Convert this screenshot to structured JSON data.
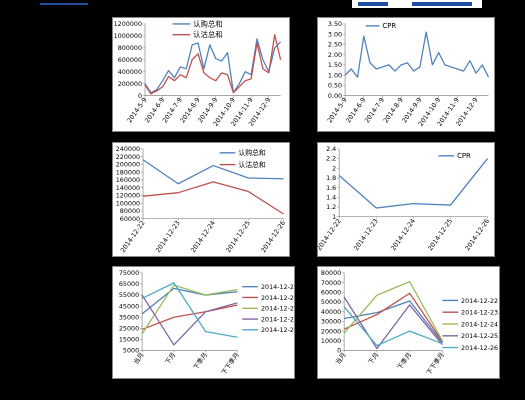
{
  "chart_data": [
    {
      "type": "line",
      "id": "c1",
      "x": [
        "2014-5-9",
        "2014-5-19",
        "2014-5-29",
        "2014-6-9",
        "2014-6-19",
        "2014-6-29",
        "2014-7-9",
        "2014-7-19",
        "2014-7-29",
        "2014-8-9",
        "2014-8-19",
        "2014-8-29",
        "2014-9-9",
        "2014-9-19",
        "2014-9-29",
        "2014-10-9",
        "2014-10-19",
        "2014-10-29",
        "2014-11-9",
        "2014-11-19",
        "2014-11-29",
        "2014-12-9",
        "2014-12-19",
        "2014-12-26"
      ],
      "xtick_labels": [
        "2014-5-9",
        "2014-6-9",
        "2014-7-9",
        "2014-8-9",
        "2014-9-9",
        "2014-10-9",
        "2014-11-9",
        "2014-12-9"
      ],
      "series": [
        {
          "name": "认购总和",
          "color": "#4f81bd",
          "values": [
            200000,
            50000,
            100000,
            250000,
            420000,
            300000,
            480000,
            450000,
            850000,
            880000,
            450000,
            850000,
            620000,
            580000,
            720000,
            50000,
            200000,
            400000,
            350000,
            950000,
            600000,
            400000,
            800000,
            900000
          ]
        },
        {
          "name": "认沽总和",
          "color": "#c0504d",
          "values": [
            180000,
            30000,
            80000,
            150000,
            320000,
            250000,
            350000,
            300000,
            600000,
            700000,
            380000,
            300000,
            250000,
            380000,
            350000,
            50000,
            150000,
            250000,
            280000,
            880000,
            450000,
            380000,
            1020000,
            600000
          ]
        }
      ],
      "yticks": [
        0,
        200000,
        400000,
        600000,
        800000,
        1000000,
        1200000
      ],
      "ylim": [
        0,
        1200000
      ],
      "legend": "top-right"
    },
    {
      "type": "line",
      "id": "c2",
      "x": [
        "2014-5-9",
        "2014-5-19",
        "2014-5-29",
        "2014-6-9",
        "2014-6-19",
        "2014-6-29",
        "2014-7-9",
        "2014-7-19",
        "2014-7-29",
        "2014-8-9",
        "2014-8-19",
        "2014-8-29",
        "2014-9-9",
        "2014-9-19",
        "2014-9-29",
        "2014-10-9",
        "2014-10-19",
        "2014-10-29",
        "2014-11-9",
        "2014-11-19",
        "2014-11-29",
        "2014-12-9",
        "2014-12-19",
        "2014-12-26"
      ],
      "xtick_labels": [
        "2014-5-9",
        "2014-6-9",
        "2014-7-9",
        "2014-8-9",
        "2014-9-9",
        "2014-10-9",
        "2014-11-9",
        "2014-12-9"
      ],
      "series": [
        {
          "name": "CPR",
          "color": "#4f81bd",
          "values": [
            1.0,
            1.3,
            0.9,
            2.9,
            1.6,
            1.3,
            1.4,
            1.5,
            1.2,
            1.5,
            1.6,
            1.2,
            1.4,
            3.1,
            1.5,
            2.1,
            1.5,
            1.4,
            1.3,
            1.2,
            1.7,
            1.1,
            1.5,
            0.9
          ]
        }
      ],
      "yticks": [
        0,
        0.5,
        1,
        1.5,
        2,
        2.5,
        3,
        3.5
      ],
      "ytick_labels": [
        "0.00",
        "0.50",
        "1.00",
        "1.50",
        "2.00",
        "2.50",
        "3.00",
        "3.50"
      ],
      "ylim": [
        0,
        3.5
      ],
      "legend": "top-left"
    },
    {
      "type": "line",
      "id": "c3",
      "x": [
        "2014-12-22",
        "2014-12-23",
        "2014-12-24",
        "2014-12-25",
        "2014-12-26"
      ],
      "xtick_labels": [
        "2014-12-22",
        "2014-12-23",
        "2014-12-24",
        "2014-12-25",
        "2014-12-26"
      ],
      "series": [
        {
          "name": "认购总和",
          "color": "#4f81bd",
          "values": [
            212000,
            150000,
            197000,
            165000,
            163000
          ]
        },
        {
          "name": "认沽总和",
          "color": "#c0504d",
          "values": [
            118000,
            127000,
            155000,
            130000,
            72000
          ]
        }
      ],
      "yticks": [
        60000,
        80000,
        100000,
        120000,
        140000,
        160000,
        180000,
        200000,
        220000,
        240000
      ],
      "ylim": [
        60000,
        240000
      ],
      "legend": "top-right"
    },
    {
      "type": "line",
      "id": "c4",
      "x": [
        "2014-12-22",
        "2014-12-23",
        "2014-12-24",
        "2014-12-25",
        "2014-12-26"
      ],
      "xtick_labels": [
        "2014-12-22",
        "2014-12-23",
        "2014-12-24",
        "2014-12-25",
        "2014-12-26"
      ],
      "series": [
        {
          "name": "CPR",
          "color": "#4f81bd",
          "values": [
            1.85,
            1.18,
            1.27,
            1.24,
            2.2
          ]
        }
      ],
      "yticks": [
        1,
        1.2,
        1.4,
        1.6,
        1.8,
        2,
        2.2,
        2.4
      ],
      "ytick_labels": [
        "1",
        "1.2",
        "1.4",
        "1.6",
        "1.8",
        "2",
        "2.2",
        "2.4"
      ],
      "ylim": [
        1,
        2.4
      ],
      "legend": "top-right"
    },
    {
      "type": "line",
      "id": "c5",
      "x": [
        "当月",
        "下月",
        "下季月",
        "下下季月"
      ],
      "xtick_labels": [
        "当月",
        "下月",
        "下季月",
        "下下季月"
      ],
      "series": [
        {
          "name": "2014-12-22",
          "color": "#4f81bd",
          "values": [
            38000,
            61000,
            55000,
            58000
          ]
        },
        {
          "name": "2014-12-23",
          "color": "#c0504d",
          "values": [
            24000,
            35000,
            40000,
            46000
          ]
        },
        {
          "name": "2014-12-24",
          "color": "#9bbb59",
          "values": [
            20000,
            64000,
            55000,
            60000
          ]
        },
        {
          "name": "2014-12-25",
          "color": "#8064a2",
          "values": [
            55000,
            10000,
            40000,
            48000
          ]
        },
        {
          "name": "2014-12-26",
          "color": "#4bacc6",
          "values": [
            52000,
            66000,
            22000,
            17000
          ]
        }
      ],
      "yticks": [
        5000,
        15000,
        25000,
        35000,
        45000,
        55000,
        65000,
        75000
      ],
      "ylim": [
        5000,
        75000
      ],
      "legend": "right"
    },
    {
      "type": "line",
      "id": "c6",
      "x": [
        "当月",
        "下月",
        "下季月",
        "下下季月"
      ],
      "xtick_labels": [
        "当月",
        "下月",
        "下季月",
        "下下季月"
      ],
      "series": [
        {
          "name": "2014-12-22",
          "color": "#4f81bd",
          "values": [
            33000,
            39000,
            51000,
            8000
          ]
        },
        {
          "name": "2014-12-23",
          "color": "#c0504d",
          "values": [
            22000,
            37000,
            59000,
            9000
          ]
        },
        {
          "name": "2014-12-24",
          "color": "#9bbb59",
          "values": [
            18000,
            57000,
            71000,
            10000
          ]
        },
        {
          "name": "2014-12-25",
          "color": "#8064a2",
          "values": [
            55000,
            2000,
            47000,
            6000
          ]
        },
        {
          "name": "2014-12-26",
          "color": "#4bacc6",
          "values": [
            45000,
            5000,
            20000,
            7000
          ]
        }
      ],
      "yticks": [
        0,
        10000,
        20000,
        30000,
        40000,
        50000,
        60000,
        70000,
        80000
      ],
      "ylim": [
        0,
        80000
      ],
      "legend": "right"
    }
  ]
}
